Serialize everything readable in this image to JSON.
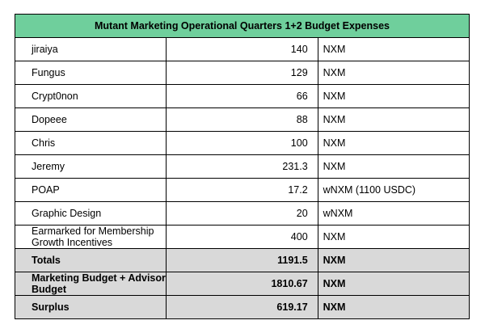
{
  "title": "Mutant Marketing Operational Quarters 1+2 Budget Expenses",
  "rows": [
    {
      "name": "jiraiya",
      "value": "140",
      "unit": "NXM"
    },
    {
      "name": "Fungus",
      "value": "129",
      "unit": "NXM"
    },
    {
      "name": "Crypt0non",
      "value": "66",
      "unit": "NXM"
    },
    {
      "name": "Dopeee",
      "value": "88",
      "unit": "NXM"
    },
    {
      "name": "Chris",
      "value": "100",
      "unit": "NXM"
    },
    {
      "name": "Jeremy",
      "value": "231.3",
      "unit": "NXM"
    },
    {
      "name": "POAP",
      "value": "17.2",
      "unit": "wNXM (1100 USDC)"
    },
    {
      "name": "Graphic Design",
      "value": "20",
      "unit": "wNXM"
    },
    {
      "name": "Earmarked for Membership Growth Incentives",
      "value": "400",
      "unit": "NXM"
    }
  ],
  "summary": [
    {
      "name": "Totals",
      "value": "1191.5",
      "unit": "NXM"
    },
    {
      "name": "Marketing Budget + Advisor Budget",
      "value": "1810.67",
      "unit": "NXM"
    },
    {
      "name": "Surplus",
      "value": "619.17",
      "unit": "NXM"
    }
  ]
}
